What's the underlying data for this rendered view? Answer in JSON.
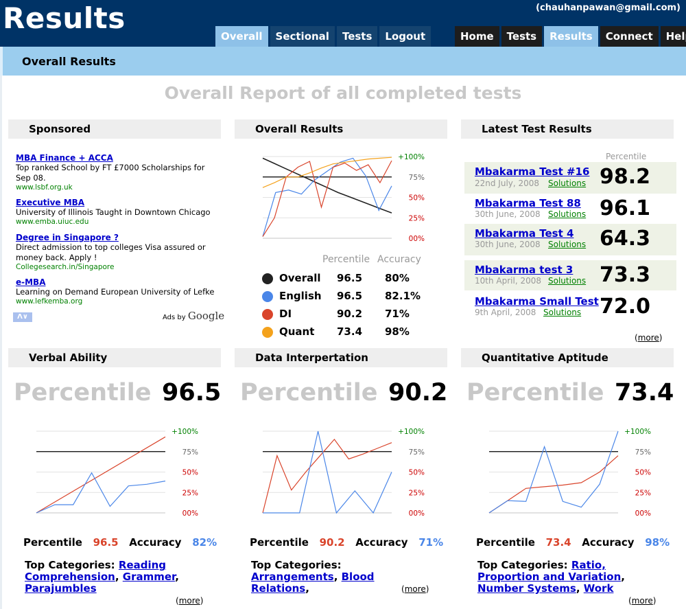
{
  "header": {
    "title": "Results",
    "user_email": "(chauhanpawan@gmail.com)",
    "nav_left": [
      "Overall",
      "Sectional",
      "Tests",
      "Logout"
    ],
    "nav_right": [
      "Home",
      "Tests",
      "Results",
      "Connect",
      "Help"
    ]
  },
  "subheader": "Overall Results",
  "report_title": "Overall Report of all completed tests",
  "sponsored": {
    "title": "Sponsored",
    "ads": [
      {
        "link": "MBA Finance + ACCA",
        "desc": "Top ranked School by FT £7000 Scholarships for Sep 08.",
        "url": "www.lsbf.org.uk"
      },
      {
        "link": "Executive MBA",
        "desc": "University of Illinois Taught in Downtown Chicago",
        "url": "www.emba.uiuc.edu"
      },
      {
        "link": "Degree in Singapore ?",
        "desc": "Direct admission to top colleges Visa assured or money back. Apply !",
        "url": "Collegesearch.in/Singapore"
      },
      {
        "link": "e-MBA",
        "desc": "Learning on Demand European University of Lefke",
        "url": "www.lefkemba.org"
      }
    ],
    "ads_by": "Ads by",
    "ads_brand": "Google",
    "adchoice": "Λ∨"
  },
  "overall": {
    "title": "Overall Results",
    "col_percentile": "Percentile",
    "col_accuracy": "Accuracy",
    "rows": [
      {
        "name": "Overall",
        "percentile": "96.5",
        "accuracy": "80%",
        "color": "#222222"
      },
      {
        "name": "English",
        "percentile": "96.5",
        "accuracy": "82.1%",
        "color": "#4a86e8"
      },
      {
        "name": "DI",
        "percentile": "90.2",
        "accuracy": "71%",
        "color": "#d9442b"
      },
      {
        "name": "Quant",
        "percentile": "73.4",
        "accuracy": "98%",
        "color": "#f4a21c"
      }
    ]
  },
  "latest": {
    "title": "Latest Test Results",
    "col_percentile": "Percentile",
    "solutions_label": "Solutions",
    "more_label": "more",
    "tests": [
      {
        "name": "Mbakarma Test #16",
        "date": "22nd July, 2008",
        "score": "98.2"
      },
      {
        "name": "Mbakarma Test 88",
        "date": "30th June, 2008",
        "score": "96.1"
      },
      {
        "name": "Mbakarma Test 4",
        "date": "30th June, 2008",
        "score": "64.3"
      },
      {
        "name": "Mbakarma test 3",
        "date": "10th April, 2008",
        "score": "73.3"
      },
      {
        "name": "Mbakarma Small Test",
        "date": "9th April, 2008",
        "score": "72.0"
      }
    ]
  },
  "sections": [
    {
      "title": "Verbal Ability",
      "percentile_word": "Percentile",
      "value": "96.5",
      "stat_percentile_label": "Percentile",
      "stat_percentile": "96.5",
      "stat_accuracy_label": "Accuracy",
      "stat_accuracy": "82%",
      "cats_label": "Top Categories",
      "cats": [
        "Reading Comprehension",
        "Grammer",
        "Parajumbles"
      ],
      "more_label": "more"
    },
    {
      "title": "Data Interpertation",
      "percentile_word": "Percentile",
      "value": "90.2",
      "stat_percentile_label": "Percentile",
      "stat_percentile": "90.2",
      "stat_accuracy_label": "Accuracy",
      "stat_accuracy": "71%",
      "cats_label": "Top Categories",
      "cats": [
        "Arrangements",
        "Blood Relations"
      ],
      "more_label": "more"
    },
    {
      "title": "Quantitative Aptitude",
      "percentile_word": "Percentile",
      "value": "73.4",
      "stat_percentile_label": "Percentile",
      "stat_percentile": "73.4",
      "stat_accuracy_label": "Accuracy",
      "stat_accuracy": "98%",
      "cats_label": "Top Categories",
      "cats": [
        "Ratio, Proportion and Variation",
        "Number Systems",
        "Work"
      ],
      "more_label": "more"
    }
  ],
  "chart_data": [
    {
      "type": "line",
      "name": "overall-chart",
      "y_ticks": [
        "00%",
        "25%",
        "50%",
        "75%",
        "+100%"
      ],
      "ylim": [
        0,
        100
      ],
      "reference_line": 75,
      "series": [
        {
          "color": "#222222",
          "values": [
            98,
            92,
            86,
            80,
            74,
            68,
            62,
            56,
            51,
            46,
            41,
            36,
            31
          ]
        },
        {
          "color": "#4a86e8",
          "values": [
            2,
            56,
            59,
            54,
            71,
            82,
            93,
            98,
            76,
            34,
            64
          ]
        },
        {
          "color": "#d9442b",
          "values": [
            2,
            25,
            75,
            87,
            94,
            38,
            87,
            92,
            83,
            90,
            68,
            95
          ]
        },
        {
          "color": "#f4a21c",
          "values": [
            62,
            68,
            75,
            75,
            80,
            86,
            91,
            93,
            95,
            97,
            98,
            99
          ]
        }
      ]
    },
    {
      "type": "line",
      "name": "verbal-chart",
      "y_ticks": [
        "00%",
        "25%",
        "50%",
        "75%",
        "+100%"
      ],
      "ylim": [
        0,
        100
      ],
      "reference_line": 75,
      "series": [
        {
          "color": "#d9442b",
          "values": [
            0,
            93
          ]
        },
        {
          "color": "#4a86e8",
          "values": [
            0,
            10,
            10,
            49,
            8,
            33,
            35,
            39
          ]
        }
      ]
    },
    {
      "type": "line",
      "name": "di-chart",
      "y_ticks": [
        "00%",
        "25%",
        "50%",
        "75%",
        "+100%"
      ],
      "ylim": [
        0,
        100
      ],
      "reference_line": 75,
      "series": [
        {
          "color": "#d9442b",
          "values": [
            0,
            70,
            28,
            50,
            70,
            90,
            66,
            72,
            79,
            86
          ]
        },
        {
          "color": "#4a86e8",
          "values": [
            0,
            0,
            0,
            100,
            0,
            27,
            0,
            50
          ]
        }
      ]
    },
    {
      "type": "line",
      "name": "quant-chart",
      "y_ticks": [
        "00%",
        "25%",
        "50%",
        "75%",
        "+100%"
      ],
      "ylim": [
        0,
        100
      ],
      "reference_line": 75,
      "series": [
        {
          "color": "#d9442b",
          "values": [
            0,
            15,
            30,
            32,
            34,
            37,
            50,
            70
          ]
        },
        {
          "color": "#4a86e8",
          "values": [
            0,
            15,
            14,
            81,
            14,
            7,
            35,
            100
          ]
        }
      ]
    }
  ]
}
